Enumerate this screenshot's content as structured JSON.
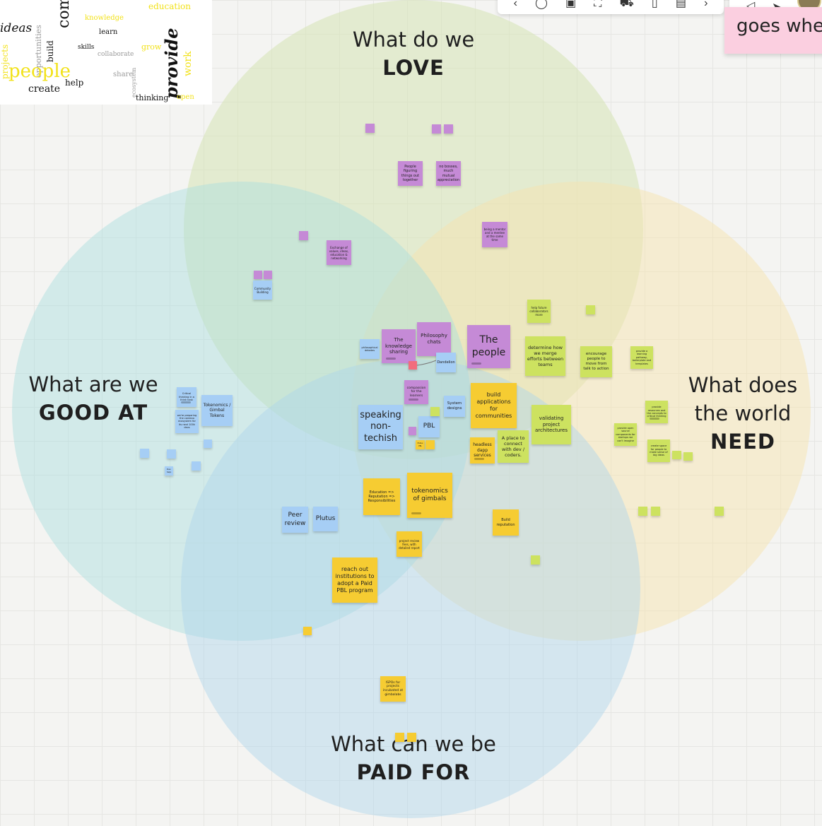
{
  "colors": {
    "love_circle": "rgba(214,228,180,0.5)",
    "need_circle": "rgba(245,228,176,0.5)",
    "good_circle": "rgba(168,222,222,0.45)",
    "paid_circle": "rgba(172,212,236,0.45)",
    "purple_note": "#c58ad6",
    "blue_note": "#a6cef5",
    "yellow_note": "#f6cc32",
    "green_note": "#cde260",
    "red_note": "#f26d7d"
  },
  "headings": {
    "love": {
      "line1": "What do we",
      "line2": "LOVE"
    },
    "good": {
      "line1": "What are we",
      "line2": "GOOD AT"
    },
    "need": {
      "line1": "What does",
      "line2": "the world",
      "line3": "NEED"
    },
    "paid": {
      "line1": "What can we be",
      "line2": "PAID FOR"
    }
  },
  "top_right_card": {
    "text": "goes wher"
  },
  "toolbar": {
    "icons": [
      "arrow-icon",
      "circle-icon",
      "lock-icon",
      "frame-icon",
      "cart-icon",
      "device-icon",
      "note-icon",
      "more-icon"
    ],
    "glyphs": [
      "‹",
      "◯",
      "▣",
      "⛶",
      "⛟",
      "▯",
      "▤",
      "›"
    ]
  },
  "toolbar2": {
    "glyphs": [
      "➤",
      "◁"
    ]
  },
  "word_cloud": {
    "words": [
      "ideas",
      "community",
      "education",
      "opportunities",
      "people",
      "help",
      "create",
      "provide",
      "thinking",
      "collaborate",
      "build",
      "work",
      "ecosystem",
      "knowledge",
      "projects",
      "learn",
      "share",
      "grow",
      "open",
      "skills"
    ]
  },
  "notes": {
    "people_figuring": "People figuring things out together",
    "no_bosses": "no bosses, much mutual appreciation",
    "mentor": "being a mentor and a mentee at the same time",
    "exchange": "Exchange of values, ideas, education & networking",
    "community_building": "Community Building",
    "knowledge_sharing": "The knowledge sharing",
    "philosophy_chats": "Philosophy chats",
    "the_people": "The people",
    "philosophical_debates": "philosophical debates",
    "dandelion": "Dandelion",
    "compassion": "compassion for the learners",
    "system_designs": "System designs",
    "speaking": "speaking non-techish",
    "pbl": "PBL",
    "critical_thinking": "Critical thinking in a think tank",
    "tokenomics_gimbal": "Tokenomics / Gimbal Tokens",
    "preparing": "we're preparing the cardano ecosystem for its next 100k devs",
    "dev_help": "Dev help",
    "peer_review": "Peer review",
    "plutus": "Plutus",
    "build_apps": "build applications for communities",
    "headless_dapp": "headless dapp services",
    "connect_devs": "A place to connect with dev / coders.",
    "education_rep": "Education => Reputation => Responsibilities",
    "tokenomics_of": "tokenomics of gimbals",
    "build_rep": "Build reputation",
    "project_review": "project review fees, with detailed report",
    "reach_out": "reach out institutions to adopt a Paid PBL program",
    "ispos": "ISPOs for projects incubated at gimbalabs",
    "help_future": "help future collaborators more",
    "determine": "determine how we merge efforts between teams",
    "encourage": "encourage people to move from talk to action",
    "provide_learning": "provide a learning pathway, boilerplate and templates",
    "validating": "validating project architectures",
    "provide_resources": "provide resources and the concepts to critical thinking",
    "provide_open": "provide open source components for startups we can't imagine",
    "create_space": "create space for people to make sense of big ideas",
    "plutus_pbl": "Plutus PBL",
    "tiny": "notes"
  }
}
